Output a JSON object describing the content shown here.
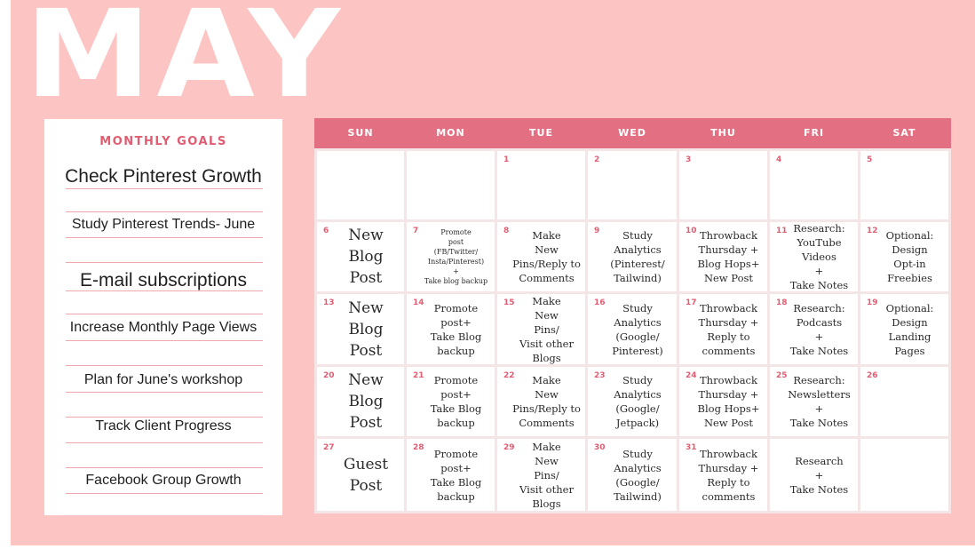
{
  "month": "MAY",
  "goals": {
    "heading": "MONTHLY GOALS",
    "items": [
      "Check Pinterest Growth",
      "Study Pinterest Trends- June",
      "E-mail subscriptions",
      "Increase Monthly Page Views",
      "Plan for June's workshop",
      "Track Client Progress",
      "Facebook Group Growth"
    ]
  },
  "calendar": {
    "days": [
      "SUN",
      "MON",
      "TUE",
      "WED",
      "THU",
      "FRI",
      "SAT"
    ],
    "weeks": [
      [
        {
          "num": "",
          "text": ""
        },
        {
          "num": "",
          "text": ""
        },
        {
          "num": "1",
          "text": ""
        },
        {
          "num": "2",
          "text": ""
        },
        {
          "num": "3",
          "text": ""
        },
        {
          "num": "4",
          "text": ""
        },
        {
          "num": "5",
          "text": ""
        }
      ],
      [
        {
          "num": "6",
          "text": "New\nBlog\nPost"
        },
        {
          "num": "7",
          "text": "Promote\npost\n(FB/Twitter/\nInsta/Pinterest)\n+\nTake blog backup"
        },
        {
          "num": "8",
          "text": "Make\nNew\nPins/Reply to\nComments"
        },
        {
          "num": "9",
          "text": "Study\nAnalytics\n(Pinterest/\nTailwind)"
        },
        {
          "num": "10",
          "text": "Throwback\nThursday +\nBlog Hops+\nNew Post"
        },
        {
          "num": "11",
          "text": "Research:\nYouTube Videos\n+\nTake Notes"
        },
        {
          "num": "12",
          "text": "Optional:\nDesign\nOpt-in\nFreebies"
        }
      ],
      [
        {
          "num": "13",
          "text": "New\nBlog\nPost"
        },
        {
          "num": "14",
          "text": "Promote\npost+\nTake Blog\nbackup"
        },
        {
          "num": "15",
          "text": "Make\nNew\nPins/\nVisit other Blogs"
        },
        {
          "num": "16",
          "text": "Study\nAnalytics\n(Google/\nPinterest)"
        },
        {
          "num": "17",
          "text": "Throwback\nThursday +\nReply to\ncomments"
        },
        {
          "num": "18",
          "text": "Research:\nPodcasts\n+\nTake Notes"
        },
        {
          "num": "19",
          "text": "Optional:\nDesign\nLanding\nPages"
        }
      ],
      [
        {
          "num": "20",
          "text": "New\nBlog\nPost"
        },
        {
          "num": "21",
          "text": "Promote\npost+\nTake Blog\nbackup"
        },
        {
          "num": "22",
          "text": "Make\nNew\nPins/Reply to\nComments"
        },
        {
          "num": "23",
          "text": "Study\nAnalytics\n(Google/\nJetpack)"
        },
        {
          "num": "24",
          "text": "Throwback\nThursday +\nBlog Hops+\nNew Post"
        },
        {
          "num": "25",
          "text": "Research:\nNewsletters\n+\nTake Notes"
        },
        {
          "num": "26",
          "text": ""
        }
      ],
      [
        {
          "num": "27",
          "text": "Guest\nPost"
        },
        {
          "num": "28",
          "text": "Promote\npost+\nTake Blog\nbackup"
        },
        {
          "num": "29",
          "text": "Make\nNew\nPins/\nVisit other Blogs"
        },
        {
          "num": "30",
          "text": "Study\nAnalytics\n(Google/\nTailwind)"
        },
        {
          "num": "31",
          "text": "Throwback\nThursday +\nReply to\ncomments"
        },
        {
          "num": "",
          "text": "Research\n+\nTake Notes"
        },
        {
          "num": "",
          "text": ""
        }
      ]
    ]
  },
  "colors": {
    "background": "#fcc4c2",
    "header": "#e27082",
    "accent": "#e05d72"
  }
}
